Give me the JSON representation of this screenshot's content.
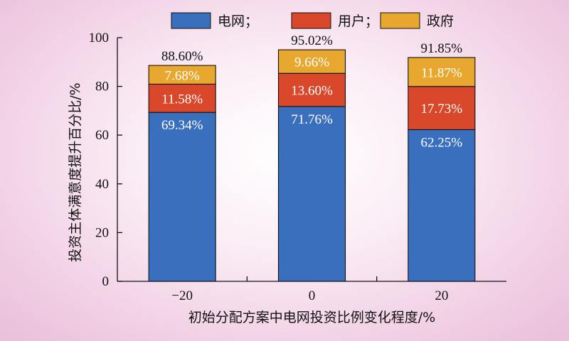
{
  "chart_data": {
    "type": "bar",
    "stacked": true,
    "xlabel": "初始分配方案中电网投资比例变化程度/%",
    "ylabel": "投资主体满意度提升百分比/%",
    "ylim": [
      0,
      100
    ],
    "yticks": [
      0,
      20,
      40,
      60,
      80,
      100
    ],
    "categories": [
      "−20",
      "0",
      "20"
    ],
    "series": [
      {
        "name": "电网",
        "color": "#3a6fbe",
        "values": [
          69.34,
          71.76,
          62.25
        ],
        "labels": [
          "69.34%",
          "71.76%",
          "62.25%"
        ]
      },
      {
        "name": "用户",
        "color": "#d9482b",
        "values": [
          11.58,
          13.6,
          17.73
        ],
        "labels": [
          "11.58%",
          "13.60%",
          "17.73%"
        ]
      },
      {
        "name": "政府",
        "color": "#e8a82f",
        "values": [
          7.68,
          9.66,
          11.87
        ],
        "labels": [
          "7.68%",
          "9.66%",
          "11.87%"
        ]
      }
    ],
    "totals": [
      "88.60%",
      "95.02%",
      "91.85%"
    ],
    "legend": {
      "position": "top",
      "separator": "；"
    },
    "grid": false
  }
}
